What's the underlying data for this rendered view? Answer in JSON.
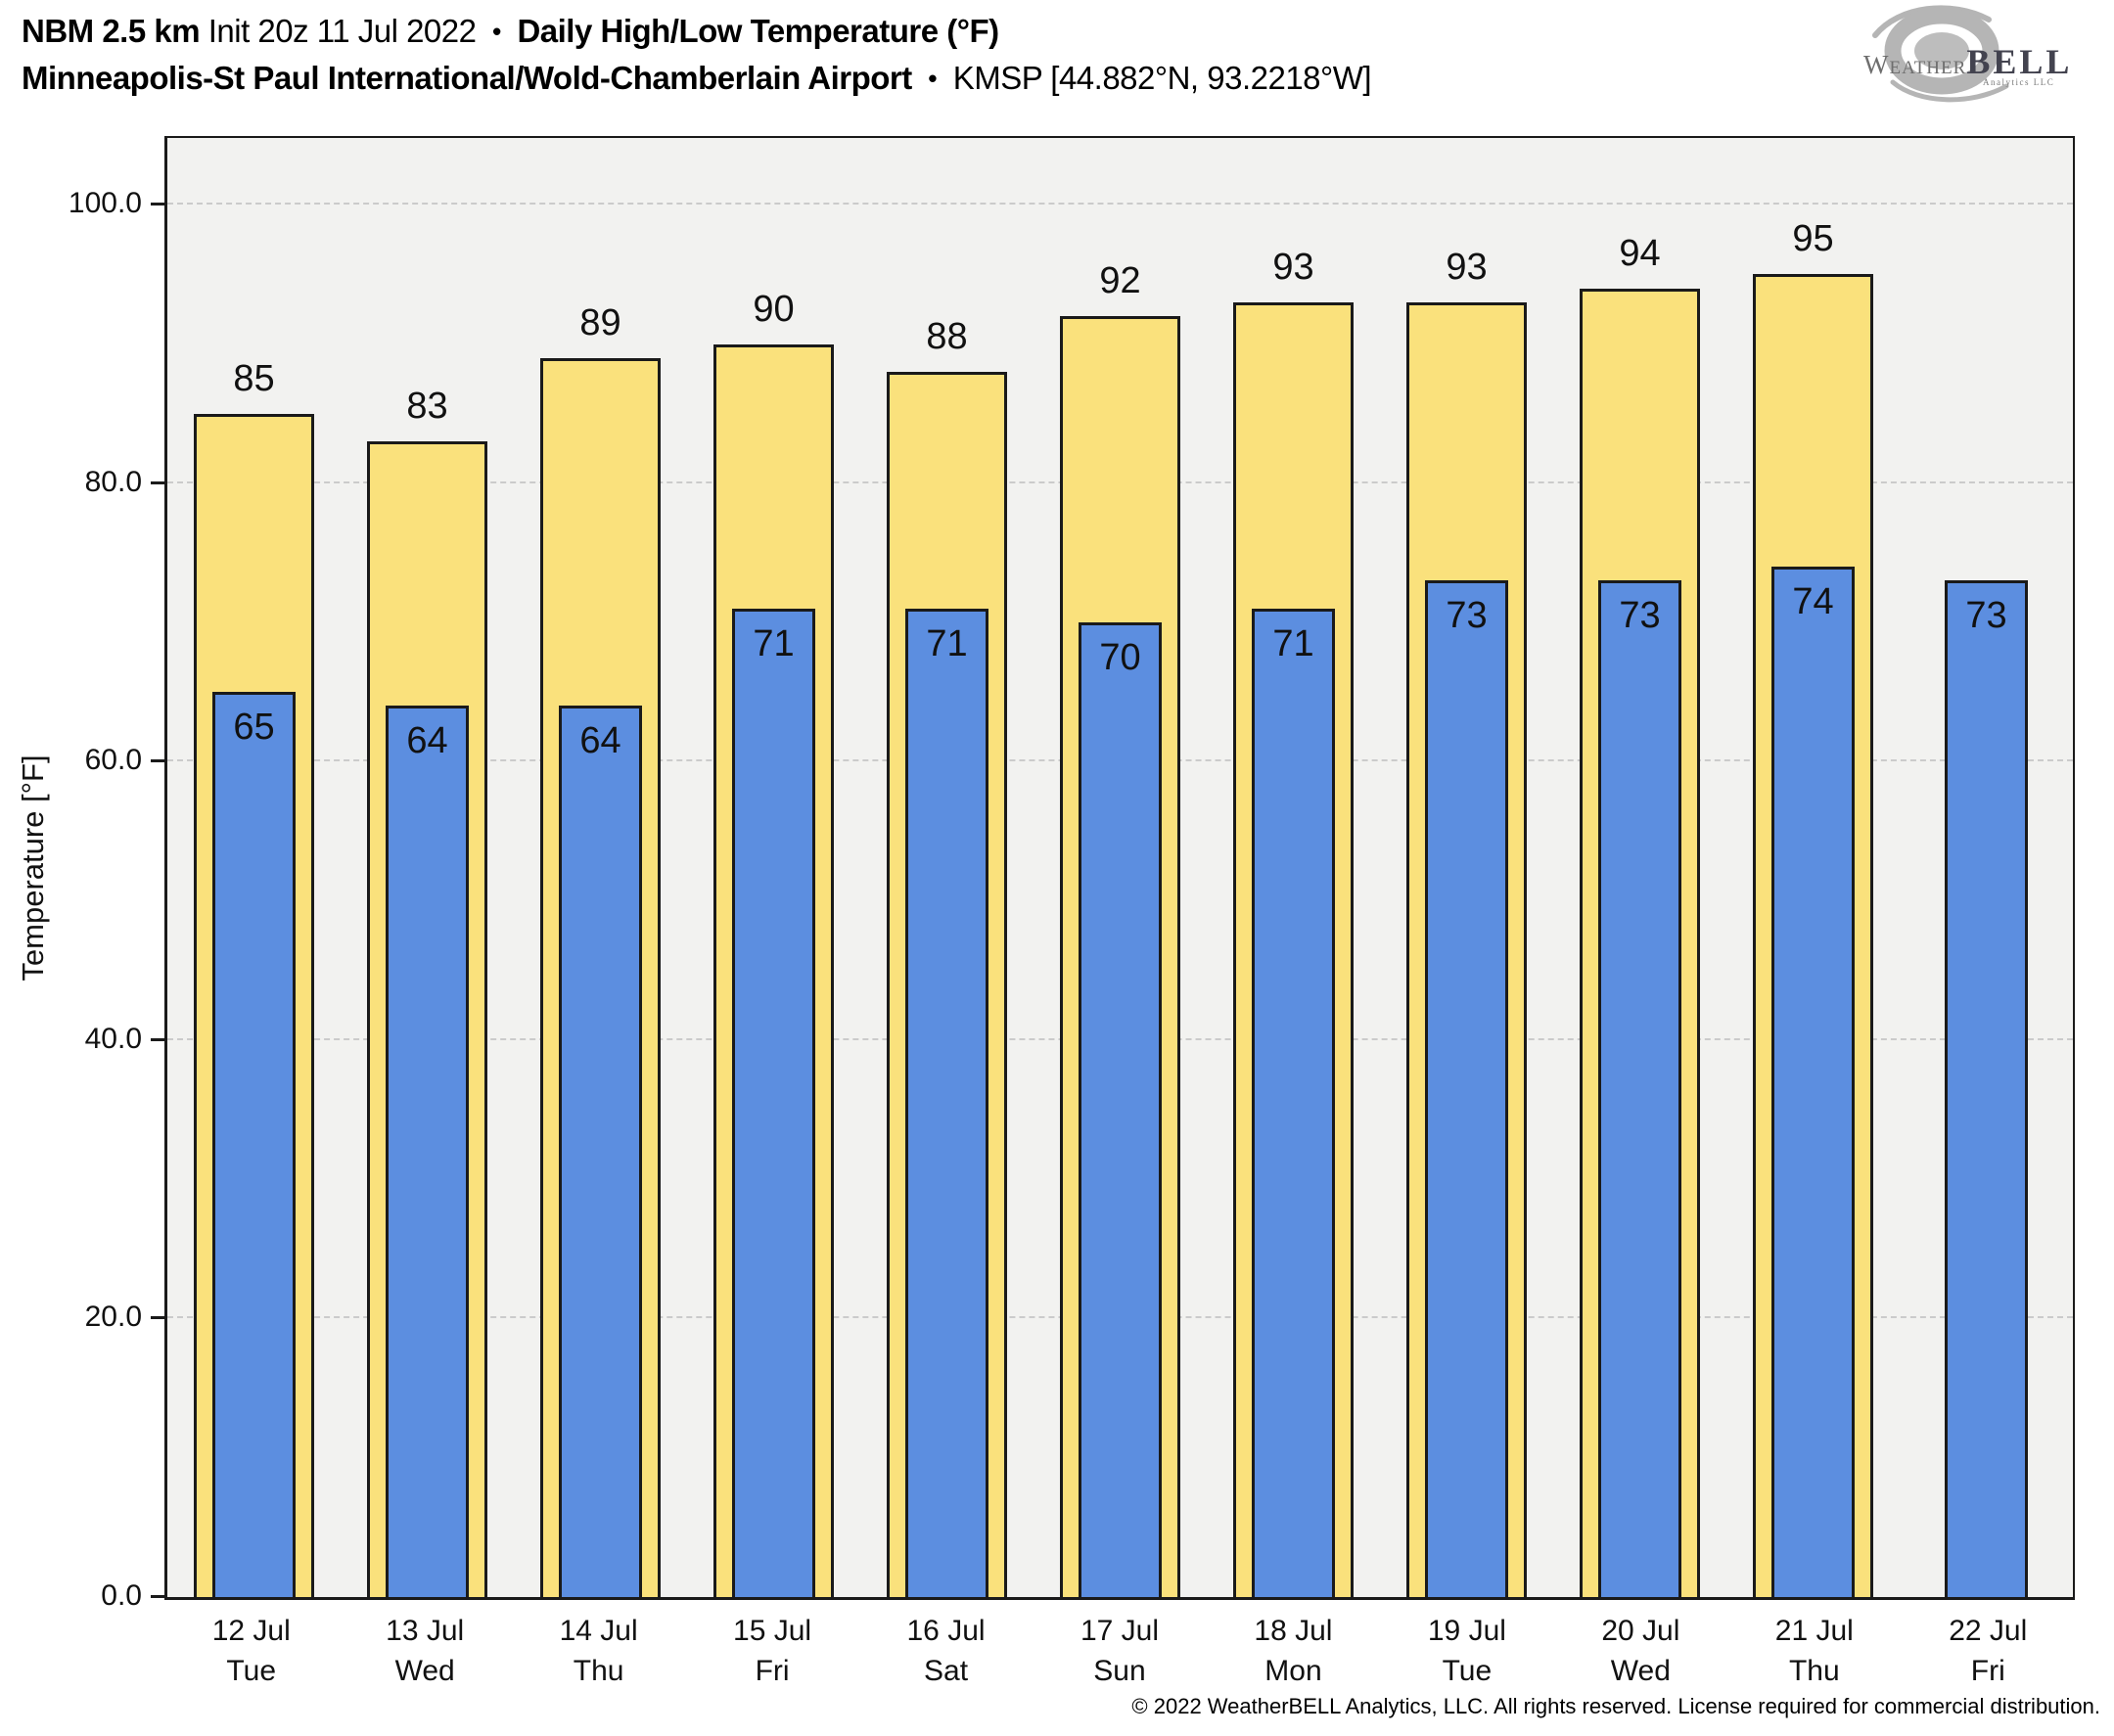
{
  "header": {
    "model": "NBM 2.5 km",
    "init": "Init 20z 11 Jul 2022",
    "bullet1": "•",
    "product": "Daily High/Low Temperature (°F)",
    "station_name": "Minneapolis-St Paul International/Wold-Chamberlain Airport",
    "bullet2": "•",
    "station_id": "KMSP [44.882°N, 93.2218°W]"
  },
  "logo": {
    "weather": "Weather",
    "bell": "BELL",
    "sub": "Analytics LLC",
    "swirl_color": "#b5b5b5"
  },
  "footer": {
    "copyright": "© 2022 WeatherBELL Analytics, LLC. All rights reserved. License required for commercial distribution."
  },
  "chart_data": {
    "type": "bar",
    "title": "NBM 2.5 km Init 20z 11 Jul 2022 • Daily High/Low Temperature (°F)",
    "subtitle": "Minneapolis-St Paul International/Wold-Chamberlain Airport • KMSP [44.882°N, 93.2218°W]",
    "ylabel": "Temperature [°F]",
    "ylim": [
      0,
      100
    ],
    "yticks": [
      {
        "value": 0,
        "label": "0.0"
      },
      {
        "value": 20,
        "label": "20.0"
      },
      {
        "value": 40,
        "label": "40.0"
      },
      {
        "value": 60,
        "label": "60.0"
      },
      {
        "value": 80,
        "label": "80.0"
      },
      {
        "value": 100,
        "label": "100.0"
      }
    ],
    "grid": "horizontal dash-dot, light gray",
    "plot_bg": "#f2f2f0",
    "categories": [
      "12 Jul",
      "13 Jul",
      "14 Jul",
      "15 Jul",
      "16 Jul",
      "17 Jul",
      "18 Jul",
      "19 Jul",
      "20 Jul",
      "21 Jul",
      "22 Jul"
    ],
    "weekdays": [
      "Tue",
      "Wed",
      "Thu",
      "Fri",
      "Sat",
      "Sun",
      "Mon",
      "Tue",
      "Wed",
      "Thu",
      "Fri"
    ],
    "series": [
      {
        "name": "High",
        "color": "#fae17c",
        "border": "#1a1a1a",
        "values": [
          85,
          83,
          89,
          90,
          88,
          92,
          93,
          93,
          94,
          95,
          null
        ]
      },
      {
        "name": "Low",
        "color": "#5c8ee0",
        "border": "#1a1a1a",
        "values": [
          65,
          64,
          64,
          71,
          71,
          70,
          71,
          73,
          73,
          74,
          73
        ]
      }
    ]
  }
}
